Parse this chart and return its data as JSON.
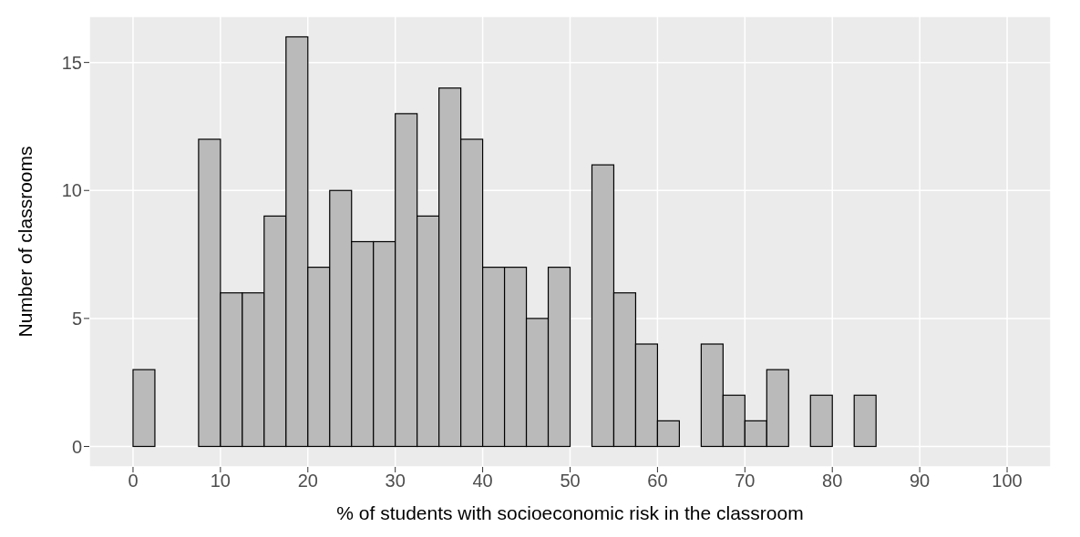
{
  "chart_data": {
    "type": "histogram",
    "xlabel": "% of students with socioeconomic risk in the classroom",
    "ylabel": "Number of classrooms",
    "bins": [
      0,
      2.5,
      5,
      7.5,
      10,
      12.5,
      15,
      17.5,
      20,
      22.5,
      25,
      27.5,
      30,
      32.5,
      35,
      37.5,
      40,
      42.5,
      45,
      47.5,
      50,
      52.5,
      55,
      57.5,
      60,
      62.5,
      65,
      67.5,
      70,
      72.5,
      75,
      77.5,
      80,
      82.5,
      85,
      87.5,
      90,
      92.5,
      95,
      97.5,
      100
    ],
    "values": [
      3,
      0,
      0,
      12,
      6,
      6,
      9,
      16,
      7,
      10,
      8,
      8,
      13,
      9,
      14,
      12,
      7,
      7,
      5,
      7,
      0,
      11,
      6,
      4,
      1,
      0,
      4,
      2,
      1,
      3,
      0,
      2,
      0,
      2,
      0,
      0,
      0,
      0,
      0,
      0
    ],
    "color": "#bababa",
    "xlim": [
      -5,
      105
    ],
    "xticks": [
      0,
      10,
      20,
      30,
      40,
      50,
      60,
      70,
      80,
      90,
      100
    ],
    "ylim": [
      -0.8,
      16.8
    ],
    "yticks": [
      0,
      5,
      10,
      15
    ],
    "grid": true
  }
}
